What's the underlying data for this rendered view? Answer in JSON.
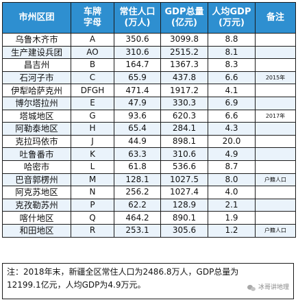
{
  "header": {
    "name": "市州区团",
    "plate": "车牌\n字母",
    "pop": "常住人口\n(万人)",
    "gdp": "GDP总量\n(亿元)",
    "percap": "人均GDP\n(万元)",
    "note": "备注"
  },
  "rows": [
    {
      "name": "乌鲁木齐市",
      "plate": "A",
      "pop": "350.6",
      "gdp": "3099.8",
      "percap": "8.8",
      "note": ""
    },
    {
      "name": "生产建设兵团",
      "plate": "AO",
      "pop": "310.6",
      "gdp": "2515.2",
      "percap": "8.1",
      "note": ""
    },
    {
      "name": "昌吉州",
      "plate": "B",
      "pop": "164.7",
      "gdp": "1367.3",
      "percap": "8.3",
      "note": ""
    },
    {
      "name": "石河子市",
      "plate": "C",
      "pop": "65.9",
      "gdp": "437.8",
      "percap": "6.6",
      "note": "2015年"
    },
    {
      "name": "伊犁哈萨克州",
      "plate": "DFGH",
      "pop": "471.4",
      "gdp": "1917.2",
      "percap": "4.1",
      "note": ""
    },
    {
      "name": "博尔塔拉州",
      "plate": "E",
      "pop": "47.9",
      "gdp": "330.3",
      "percap": "6.9",
      "note": ""
    },
    {
      "name": "塔城地区",
      "plate": "G",
      "pop": "93.6",
      "gdp": "620.3",
      "percap": "6.6",
      "note": "2017年"
    },
    {
      "name": "阿勒泰地区",
      "plate": "H",
      "pop": "65.4",
      "gdp": "284.1",
      "percap": "4.3",
      "note": ""
    },
    {
      "name": "克拉玛依市",
      "plate": "J",
      "pop": "44.9",
      "gdp": "898.1",
      "percap": "20.0",
      "note": ""
    },
    {
      "name": "吐鲁番市",
      "plate": "K",
      "pop": "63.3",
      "gdp": "310.6",
      "percap": "4.9",
      "note": ""
    },
    {
      "name": "哈密市",
      "plate": "L",
      "pop": "61.8",
      "gdp": "536.6",
      "percap": "8.7",
      "note": ""
    },
    {
      "name": "巴音郭楞州",
      "plate": "M",
      "pop": "128.1",
      "gdp": "1027.5",
      "percap": "8.0",
      "note": "户籍人口"
    },
    {
      "name": "阿克苏地区",
      "plate": "N",
      "pop": "256.2",
      "gdp": "1027.4",
      "percap": "4.0",
      "note": ""
    },
    {
      "name": "克孜勒苏州",
      "plate": "P",
      "pop": "62.2",
      "gdp": "128.9",
      "percap": "2.1",
      "note": ""
    },
    {
      "name": "喀什地区",
      "plate": "Q",
      "pop": "464.2",
      "gdp": "890.1",
      "percap": "1.9",
      "note": ""
    },
    {
      "name": "和田地区",
      "plate": "R",
      "pop": "253.1",
      "gdp": "305.6",
      "percap": "1.2",
      "note": "户籍人口"
    }
  ],
  "footer": {
    "line1": "注：2018年末，新疆全区常住人口为2486.8万人，GDP总量为",
    "line2": "12199.1亿元，人均GDP为4.9万元。"
  },
  "watermark": {
    "icon": "wechat-icon",
    "text": "冰哥讲地理"
  }
}
